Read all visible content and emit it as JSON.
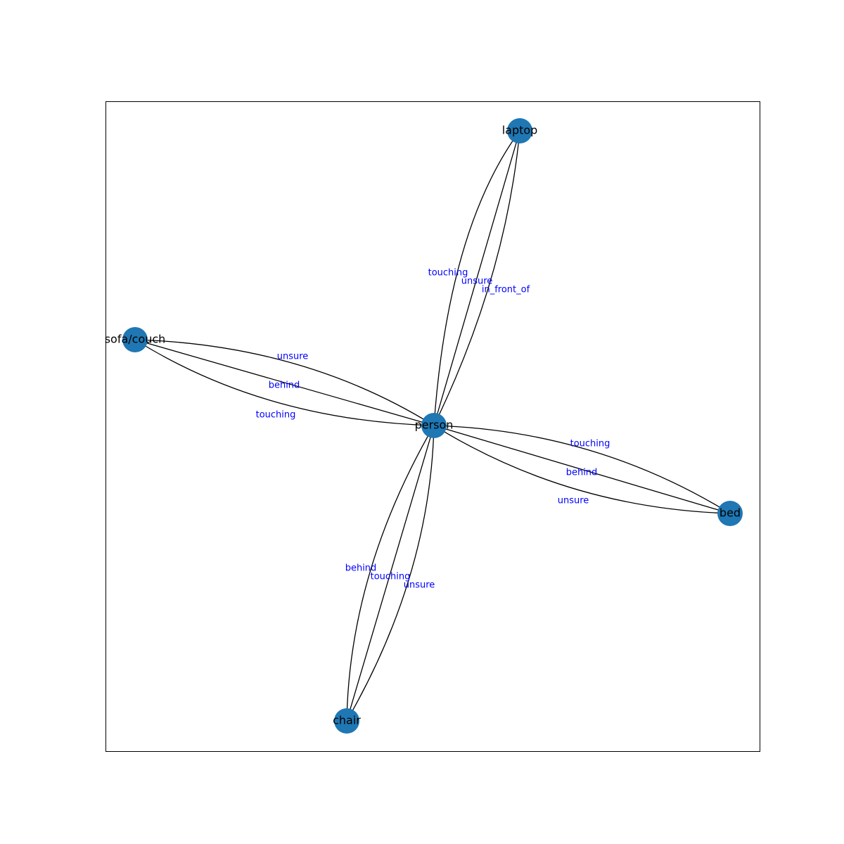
{
  "colors": {
    "node_fill": "#1f77b4",
    "edge_stroke": "#000000",
    "edge_label": "#0000ff",
    "node_label": "#000000"
  },
  "nodes": [
    {
      "id": "person",
      "label": "person"
    },
    {
      "id": "laptop",
      "label": "laptop"
    },
    {
      "id": "sofa",
      "label": "sofa/couch"
    },
    {
      "id": "bed",
      "label": "bed"
    },
    {
      "id": "chair",
      "label": "chair"
    }
  ],
  "edges": [
    {
      "source": "person",
      "target": "laptop",
      "label": "touching"
    },
    {
      "source": "person",
      "target": "laptop",
      "label": "unsure"
    },
    {
      "source": "person",
      "target": "laptop",
      "label": "in_front_of"
    },
    {
      "source": "person",
      "target": "sofa",
      "label": "unsure"
    },
    {
      "source": "person",
      "target": "sofa",
      "label": "behind"
    },
    {
      "source": "person",
      "target": "sofa",
      "label": "touching"
    },
    {
      "source": "person",
      "target": "bed",
      "label": "touching"
    },
    {
      "source": "person",
      "target": "bed",
      "label": "behind"
    },
    {
      "source": "person",
      "target": "bed",
      "label": "unsure"
    },
    {
      "source": "person",
      "target": "chair",
      "label": "behind"
    },
    {
      "source": "person",
      "target": "chair",
      "label": "touching"
    },
    {
      "source": "person",
      "target": "chair",
      "label": "unsure"
    }
  ]
}
